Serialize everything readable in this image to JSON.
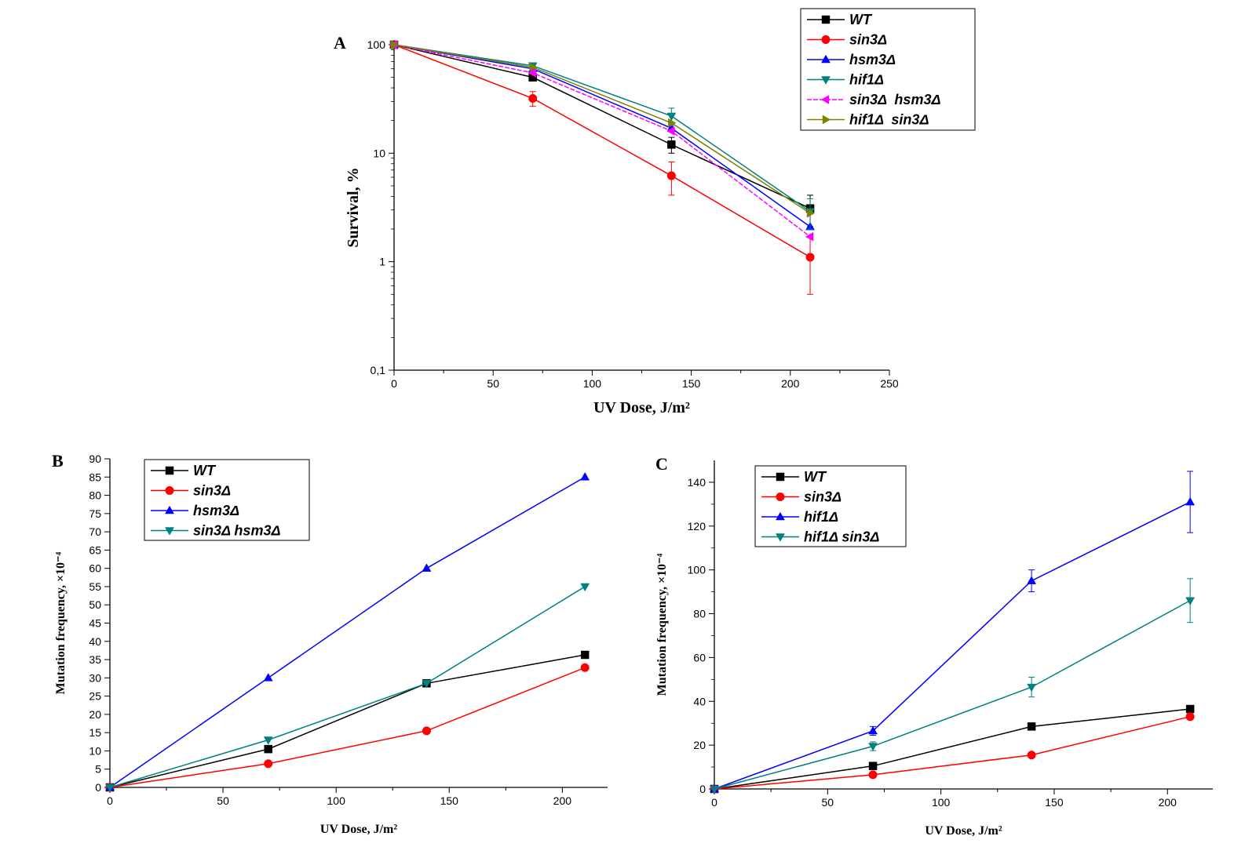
{
  "chart_data": [
    {
      "panel": "A",
      "type": "line",
      "xlabel": "UV Dose, J/m²",
      "ylabel": "Survival, %",
      "xlim": [
        0,
        250
      ],
      "ylim": [
        0.1,
        100
      ],
      "yscale": "log",
      "xticks": [
        0,
        50,
        100,
        150,
        200,
        250
      ],
      "yticks": [
        0.1,
        1,
        10,
        100
      ],
      "ytick_labels": [
        "0,1",
        "1",
        "10",
        "100"
      ],
      "legend_position": "top-right",
      "x": [
        0,
        70,
        140,
        210
      ],
      "series": [
        {
          "name": "WT",
          "color": "#000000",
          "marker": "square",
          "values": [
            100,
            50,
            12,
            3.1
          ],
          "err": [
            0,
            3,
            2,
            1.0
          ]
        },
        {
          "name": "sin3Δ",
          "color": "#ff0000",
          "marker": "circle",
          "values": [
            100,
            32,
            6.2,
            1.1
          ],
          "err": [
            0,
            5,
            2.1,
            0.6
          ]
        },
        {
          "name": "hsm3Δ",
          "color": "#0000ff",
          "marker": "triangle-up",
          "values": [
            100,
            60,
            17,
            2.1
          ],
          "err": [
            0,
            0,
            0,
            0
          ]
        },
        {
          "name": "hif1Δ",
          "color": "#008080",
          "marker": "triangle-down",
          "values": [
            100,
            64,
            22,
            2.9
          ],
          "err": [
            0,
            3,
            4,
            0.9
          ]
        },
        {
          "name": "sin3Δ  hsm3Δ",
          "color": "#ff00ff",
          "marker": "triangle-left",
          "values": [
            100,
            55,
            16,
            1.7
          ],
          "err": [
            0,
            0,
            0,
            0
          ]
        },
        {
          "name": "hif1Δ  sin3Δ",
          "color": "#808000",
          "marker": "triangle-right",
          "values": [
            100,
            62,
            19,
            2.8
          ],
          "err": [
            0,
            0,
            0,
            0
          ]
        }
      ]
    },
    {
      "panel": "B",
      "type": "line",
      "xlabel": "UV Dose, J/m²",
      "ylabel": "Mutation frequency, ×10⁻⁴",
      "xlim": [
        0,
        220
      ],
      "ylim": [
        0,
        90
      ],
      "xticks": [
        0,
        50,
        100,
        150,
        200
      ],
      "yticks": [
        0,
        5,
        10,
        15,
        20,
        25,
        30,
        35,
        40,
        45,
        50,
        55,
        60,
        65,
        70,
        75,
        80,
        85,
        90
      ],
      "legend_position": "top-left",
      "x": [
        0,
        70,
        140,
        210
      ],
      "series": [
        {
          "name": "WT",
          "color": "#000000",
          "marker": "square",
          "values": [
            0,
            10.5,
            28.5,
            36.3
          ],
          "err": [
            0,
            0,
            0,
            0
          ]
        },
        {
          "name": "sin3Δ",
          "color": "#ff0000",
          "marker": "circle",
          "values": [
            0,
            6.5,
            15.5,
            32.8
          ],
          "err": [
            0,
            0,
            0,
            0
          ]
        },
        {
          "name": "hsm3Δ",
          "color": "#0000ff",
          "marker": "triangle-up",
          "values": [
            0,
            30,
            60,
            85
          ],
          "err": [
            0,
            0,
            0,
            0
          ]
        },
        {
          "name": "sin3Δ hsm3Δ",
          "color": "#008080",
          "marker": "triangle-down",
          "values": [
            0,
            13,
            28.5,
            55
          ],
          "err": [
            0,
            0,
            0,
            0
          ]
        }
      ]
    },
    {
      "panel": "C",
      "type": "line",
      "xlabel": "UV Dose, J/m²",
      "ylabel": "Mutation frequency, ×10⁻⁴",
      "xlim": [
        0,
        220
      ],
      "ylim": [
        0,
        150
      ],
      "xticks": [
        0,
        50,
        100,
        150,
        200
      ],
      "yticks": [
        0,
        20,
        40,
        60,
        80,
        100,
        120,
        140
      ],
      "legend_position": "top-left",
      "x": [
        0,
        70,
        140,
        210
      ],
      "series": [
        {
          "name": "WT",
          "color": "#000000",
          "marker": "square",
          "values": [
            0,
            10.5,
            28.5,
            36.5
          ],
          "err": [
            0,
            0,
            0,
            0
          ]
        },
        {
          "name": "sin3Δ",
          "color": "#ff0000",
          "marker": "circle",
          "values": [
            0,
            6.5,
            15.5,
            33
          ],
          "err": [
            0,
            0,
            0,
            0
          ]
        },
        {
          "name": "hif1Δ",
          "color": "#0000ff",
          "marker": "triangle-up",
          "values": [
            0,
            26.5,
            95,
            131
          ],
          "err": [
            0,
            2,
            5,
            14
          ]
        },
        {
          "name": "hif1Δ sin3Δ",
          "color": "#008080",
          "marker": "triangle-down",
          "values": [
            0,
            19.5,
            46.5,
            86
          ],
          "err": [
            0,
            2,
            4.5,
            10
          ]
        }
      ]
    }
  ]
}
